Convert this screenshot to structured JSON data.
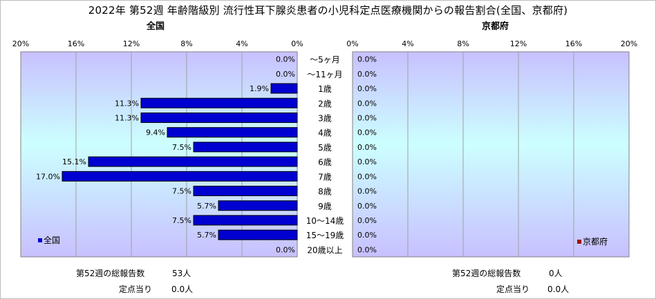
{
  "title": "2022年 第52週 年齢階級別 流行性耳下腺炎患者の小児科定点医療機関からの報告割合(全国、京都府)",
  "chart_data": [
    {
      "type": "bar",
      "orientation": "horizontal",
      "subtitle": "全国",
      "legend": "全国",
      "legend_position": "bottom-left",
      "color": "#0000d0",
      "xlim": [
        0,
        20
      ],
      "x_reversed": true,
      "ticks": [
        "20%",
        "16%",
        "12%",
        "8%",
        "4%",
        "0%"
      ],
      "categories": [
        "～5ヶ月",
        "～11ヶ月",
        "1歳",
        "2歳",
        "3歳",
        "4歳",
        "5歳",
        "6歳",
        "7歳",
        "8歳",
        "9歳",
        "10～14歳",
        "15～19歳",
        "20歳以上"
      ],
      "values": [
        0.0,
        0.0,
        1.9,
        11.3,
        11.3,
        9.4,
        7.5,
        15.1,
        17.0,
        7.5,
        5.7,
        7.5,
        5.7,
        0.0
      ],
      "labels": [
        "0.0%",
        "0.0%",
        "1.9%",
        "11.3%",
        "11.3%",
        "9.4%",
        "7.5%",
        "15.1%",
        "17.0%",
        "7.5%",
        "5.7%",
        "7.5%",
        "5.7%",
        "0.0%"
      ]
    },
    {
      "type": "bar",
      "orientation": "horizontal",
      "subtitle": "京都府",
      "legend": "京都府",
      "legend_position": "bottom-right",
      "color": "#a01010",
      "xlim": [
        0,
        20
      ],
      "ticks": [
        "0%",
        "4%",
        "8%",
        "12%",
        "16%",
        "20%"
      ],
      "categories": [
        "～5ヶ月",
        "～11ヶ月",
        "1歳",
        "2歳",
        "3歳",
        "4歳",
        "5歳",
        "6歳",
        "7歳",
        "8歳",
        "9歳",
        "10～14歳",
        "15～19歳",
        "20歳以上"
      ],
      "values": [
        0.0,
        0.0,
        0.0,
        0.0,
        0.0,
        0.0,
        0.0,
        0.0,
        0.0,
        0.0,
        0.0,
        0.0,
        0.0,
        0.0
      ],
      "labels": [
        "0.0%",
        "0.0%",
        "0.0%",
        "0.0%",
        "0.0%",
        "0.0%",
        "0.0%",
        "0.0%",
        "0.0%",
        "0.0%",
        "0.0%",
        "0.0%",
        "0.0%",
        "0.0%"
      ]
    }
  ],
  "footer": {
    "national": {
      "total_label": "第52週の総報告数",
      "total_value": "53人",
      "per_label": "定点当り",
      "per_value": "0.0人"
    },
    "kyoto": {
      "total_label": "第52週の総報告数",
      "total_value": "0人",
      "per_label": "定点当り",
      "per_value": "0.0人"
    }
  }
}
